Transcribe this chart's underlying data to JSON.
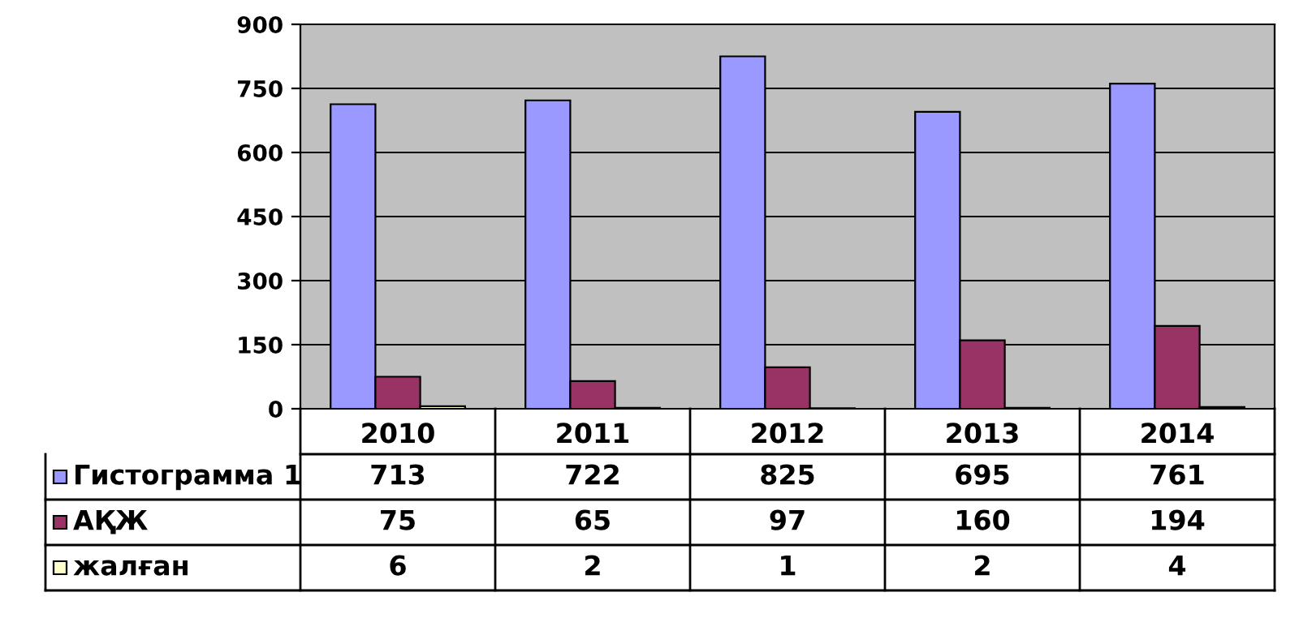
{
  "chart_data": {
    "type": "bar",
    "categories": [
      "2010",
      "2011",
      "2012",
      "2013",
      "2014"
    ],
    "series": [
      {
        "name": "Гистограмма 1",
        "color": "#9999ff",
        "values": [
          713,
          722,
          825,
          695,
          761
        ]
      },
      {
        "name": "АҚЖ",
        "color": "#993366",
        "values": [
          75,
          65,
          97,
          160,
          194
        ]
      },
      {
        "name": "жалған",
        "color": "#ffffcc",
        "values": [
          6,
          2,
          1,
          2,
          4
        ]
      }
    ],
    "ylim": [
      0,
      900
    ],
    "yticks": [
      0,
      150,
      300,
      450,
      600,
      750,
      900
    ],
    "grid": "y",
    "legend": "bottom",
    "data_labels": true
  }
}
